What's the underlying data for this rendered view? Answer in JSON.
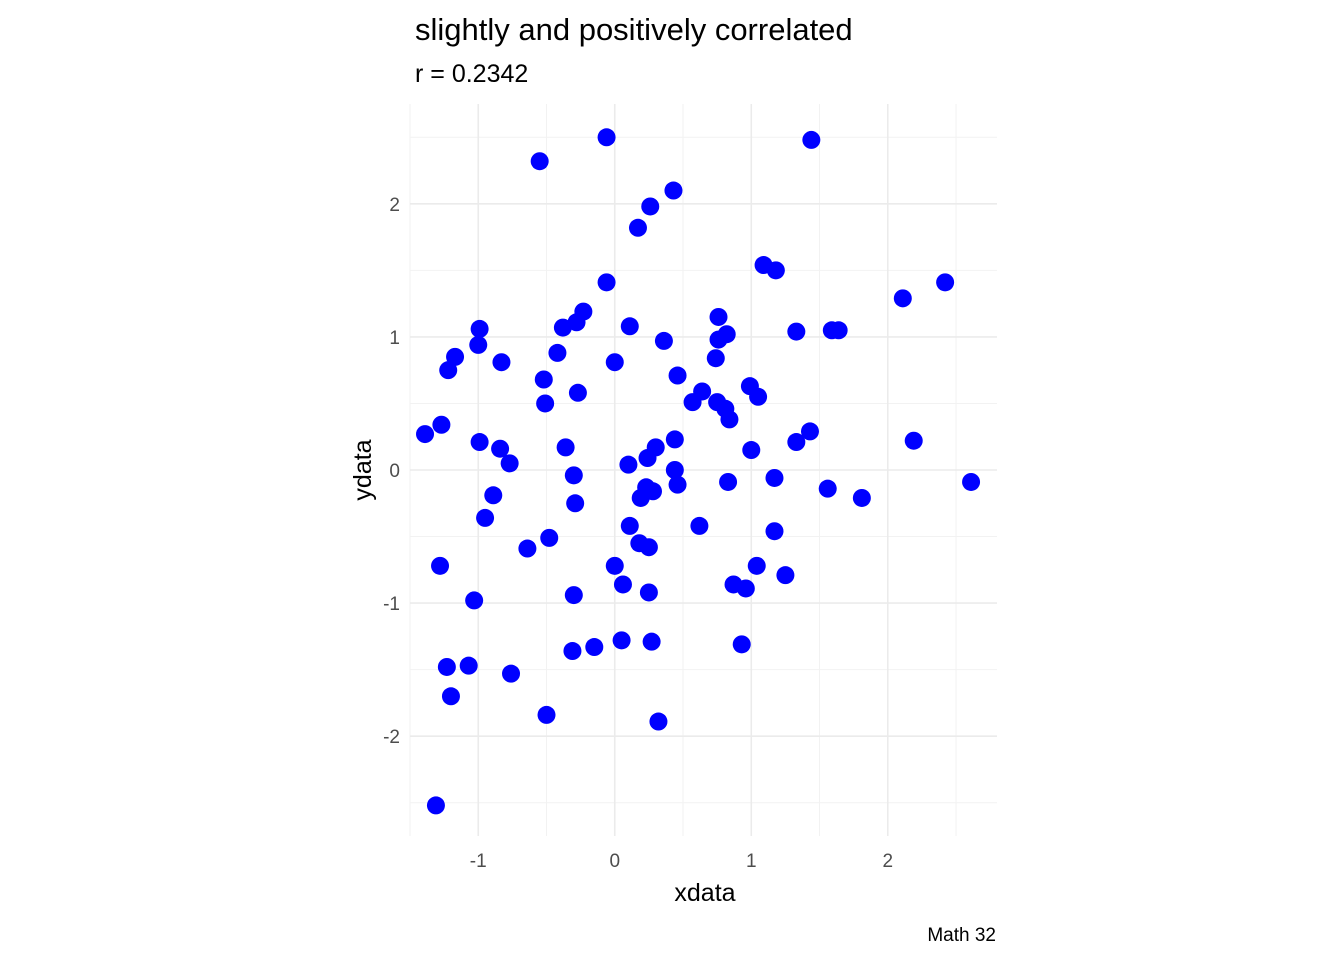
{
  "chart_data": {
    "type": "scatter",
    "title": "slightly and positively correlated",
    "subtitle": "r = 0.2342",
    "xlabel": "xdata",
    "ylabel": "ydata",
    "caption": "Math 32",
    "xlim": [
      -1.5,
      2.8
    ],
    "ylim": [
      -2.75,
      2.75
    ],
    "x_ticks": [
      -1,
      0,
      1,
      2
    ],
    "y_ticks": [
      -2,
      -1,
      0,
      1,
      2
    ],
    "grid": true,
    "point_color": "#0000ff",
    "points": [
      {
        "x": -0.55,
        "y": 2.32
      },
      {
        "x": -0.06,
        "y": 2.5
      },
      {
        "x": 1.44,
        "y": 2.48
      },
      {
        "x": 0.43,
        "y": 2.1
      },
      {
        "x": 0.26,
        "y": 1.98
      },
      {
        "x": 0.17,
        "y": 1.82
      },
      {
        "x": 1.09,
        "y": 1.54
      },
      {
        "x": 1.18,
        "y": 1.5
      },
      {
        "x": -0.06,
        "y": 1.41
      },
      {
        "x": 2.42,
        "y": 1.41
      },
      {
        "x": 2.11,
        "y": 1.29
      },
      {
        "x": -0.23,
        "y": 1.19
      },
      {
        "x": -0.28,
        "y": 1.11
      },
      {
        "x": -0.38,
        "y": 1.07
      },
      {
        "x": 0.11,
        "y": 1.08
      },
      {
        "x": 0.76,
        "y": 1.15
      },
      {
        "x": -0.99,
        "y": 1.06
      },
      {
        "x": 1.33,
        "y": 1.04
      },
      {
        "x": 1.59,
        "y": 1.05
      },
      {
        "x": 1.64,
        "y": 1.05
      },
      {
        "x": 0.82,
        "y": 1.02
      },
      {
        "x": 0.76,
        "y": 0.98
      },
      {
        "x": -1.0,
        "y": 0.94
      },
      {
        "x": 0.36,
        "y": 0.97
      },
      {
        "x": -0.42,
        "y": 0.88
      },
      {
        "x": -1.17,
        "y": 0.85
      },
      {
        "x": 0.0,
        "y": 0.81
      },
      {
        "x": -0.83,
        "y": 0.81
      },
      {
        "x": 0.74,
        "y": 0.84
      },
      {
        "x": -1.22,
        "y": 0.75
      },
      {
        "x": 0.46,
        "y": 0.71
      },
      {
        "x": -0.52,
        "y": 0.68
      },
      {
        "x": 0.64,
        "y": 0.59
      },
      {
        "x": 0.99,
        "y": 0.63
      },
      {
        "x": -0.27,
        "y": 0.58
      },
      {
        "x": 1.05,
        "y": 0.55
      },
      {
        "x": 0.57,
        "y": 0.51
      },
      {
        "x": 0.75,
        "y": 0.51
      },
      {
        "x": -0.51,
        "y": 0.5
      },
      {
        "x": 0.81,
        "y": 0.46
      },
      {
        "x": 0.84,
        "y": 0.38
      },
      {
        "x": -1.27,
        "y": 0.34
      },
      {
        "x": 1.43,
        "y": 0.29
      },
      {
        "x": -1.39,
        "y": 0.27
      },
      {
        "x": 0.44,
        "y": 0.23
      },
      {
        "x": 2.19,
        "y": 0.22
      },
      {
        "x": -0.99,
        "y": 0.21
      },
      {
        "x": 1.33,
        "y": 0.21
      },
      {
        "x": 0.3,
        "y": 0.17
      },
      {
        "x": -0.36,
        "y": 0.17
      },
      {
        "x": -0.84,
        "y": 0.16
      },
      {
        "x": 1.0,
        "y": 0.15
      },
      {
        "x": 0.24,
        "y": 0.09
      },
      {
        "x": 0.1,
        "y": 0.04
      },
      {
        "x": -0.77,
        "y": 0.05
      },
      {
        "x": 0.44,
        "y": 0.0
      },
      {
        "x": -0.3,
        "y": -0.04
      },
      {
        "x": 1.17,
        "y": -0.06
      },
      {
        "x": 2.61,
        "y": -0.09
      },
      {
        "x": 0.83,
        "y": -0.09
      },
      {
        "x": 0.46,
        "y": -0.11
      },
      {
        "x": 0.23,
        "y": -0.13
      },
      {
        "x": 1.56,
        "y": -0.14
      },
      {
        "x": 0.28,
        "y": -0.16
      },
      {
        "x": -0.89,
        "y": -0.19
      },
      {
        "x": 0.19,
        "y": -0.21
      },
      {
        "x": 1.81,
        "y": -0.21
      },
      {
        "x": -0.29,
        "y": -0.25
      },
      {
        "x": -0.95,
        "y": -0.36
      },
      {
        "x": 0.11,
        "y": -0.42
      },
      {
        "x": 0.62,
        "y": -0.42
      },
      {
        "x": 1.17,
        "y": -0.46
      },
      {
        "x": -0.48,
        "y": -0.51
      },
      {
        "x": 0.18,
        "y": -0.55
      },
      {
        "x": 0.25,
        "y": -0.58
      },
      {
        "x": -0.64,
        "y": -0.59
      },
      {
        "x": 0.0,
        "y": -0.72
      },
      {
        "x": 1.04,
        "y": -0.72
      },
      {
        "x": -1.28,
        "y": -0.72
      },
      {
        "x": 1.25,
        "y": -0.79
      },
      {
        "x": 0.06,
        "y": -0.86
      },
      {
        "x": 0.87,
        "y": -0.86
      },
      {
        "x": 0.96,
        "y": -0.89
      },
      {
        "x": 0.25,
        "y": -0.92
      },
      {
        "x": -0.3,
        "y": -0.94
      },
      {
        "x": -1.03,
        "y": -0.98
      },
      {
        "x": 0.05,
        "y": -1.28
      },
      {
        "x": 0.27,
        "y": -1.29
      },
      {
        "x": -0.15,
        "y": -1.33
      },
      {
        "x": 0.93,
        "y": -1.31
      },
      {
        "x": -0.31,
        "y": -1.36
      },
      {
        "x": -1.23,
        "y": -1.48
      },
      {
        "x": -1.07,
        "y": -1.47
      },
      {
        "x": -0.76,
        "y": -1.53
      },
      {
        "x": -1.2,
        "y": -1.7
      },
      {
        "x": -0.5,
        "y": -1.84
      },
      {
        "x": 0.32,
        "y": -1.89
      },
      {
        "x": -1.31,
        "y": -2.52
      }
    ]
  }
}
